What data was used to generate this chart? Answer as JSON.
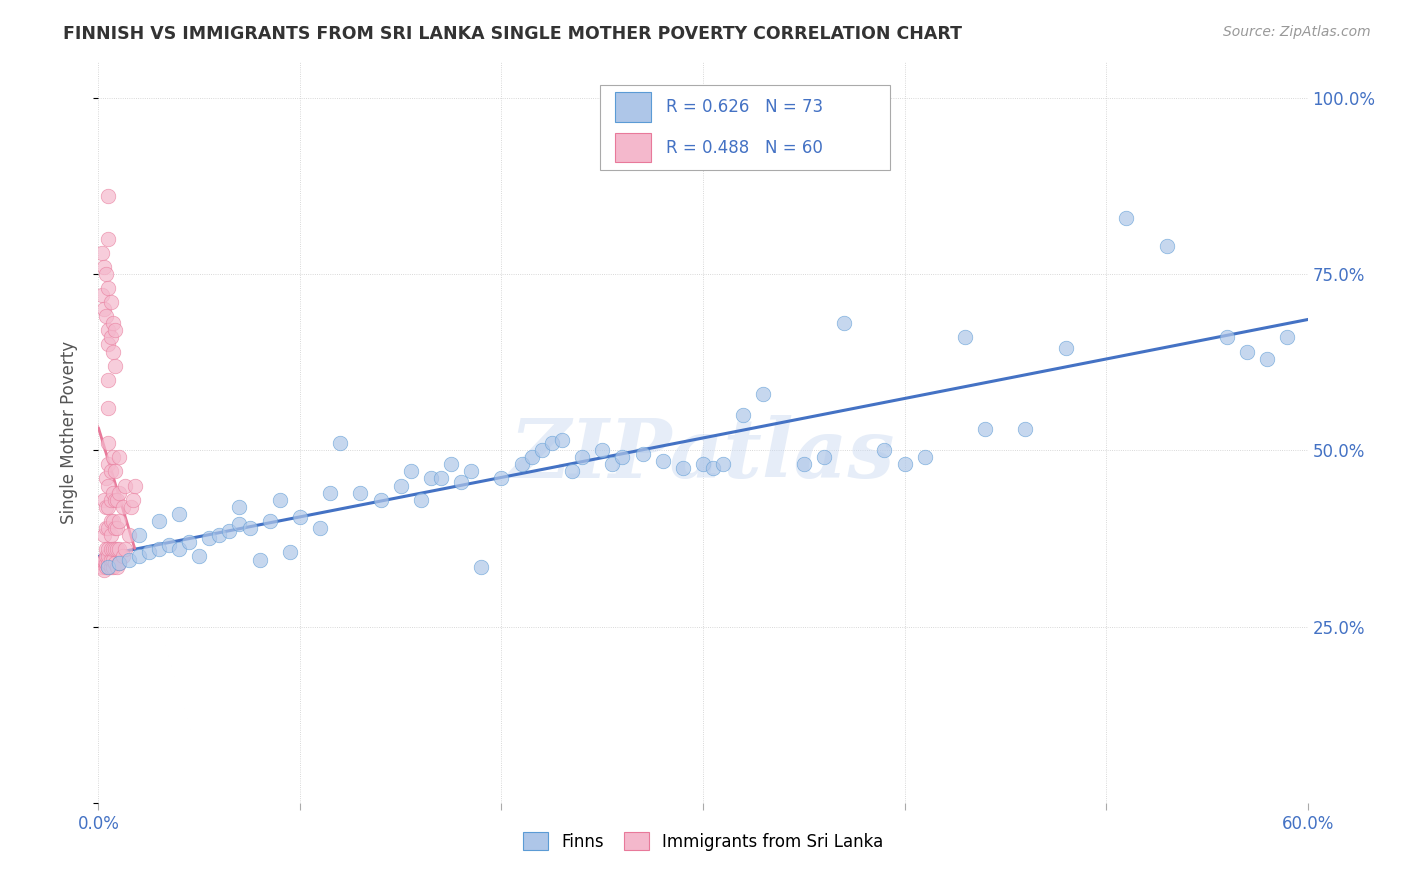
{
  "title": "FINNISH VS IMMIGRANTS FROM SRI LANKA SINGLE MOTHER POVERTY CORRELATION CHART",
  "source": "Source: ZipAtlas.com",
  "ylabel": "Single Mother Poverty",
  "watermark": "ZIPatlas",
  "legend_label_1": "Finns",
  "legend_label_2": "Immigrants from Sri Lanka",
  "R1": 0.626,
  "N1": 73,
  "R2": 0.488,
  "N2": 60,
  "xlim": [
    0.0,
    0.6
  ],
  "ylim": [
    0.0,
    1.05
  ],
  "blue_text": "#4472c4",
  "color_finns": "#aec6e8",
  "color_sri": "#f4b8cc",
  "color_edge_finns": "#5b9bd5",
  "color_edge_sri": "#e8799a",
  "color_line_finns": "#4472c4",
  "color_line_sri": "#e8799a",
  "finns_x": [
    0.005,
    0.01,
    0.015,
    0.02,
    0.02,
    0.025,
    0.03,
    0.03,
    0.035,
    0.04,
    0.04,
    0.045,
    0.05,
    0.055,
    0.06,
    0.065,
    0.07,
    0.07,
    0.075,
    0.08,
    0.085,
    0.09,
    0.095,
    0.1,
    0.11,
    0.115,
    0.12,
    0.13,
    0.14,
    0.15,
    0.155,
    0.16,
    0.165,
    0.17,
    0.175,
    0.18,
    0.185,
    0.19,
    0.2,
    0.21,
    0.215,
    0.22,
    0.225,
    0.23,
    0.235,
    0.24,
    0.25,
    0.255,
    0.26,
    0.27,
    0.28,
    0.29,
    0.3,
    0.305,
    0.31,
    0.32,
    0.33,
    0.35,
    0.36,
    0.37,
    0.39,
    0.4,
    0.41,
    0.43,
    0.44,
    0.46,
    0.48,
    0.51,
    0.53,
    0.56,
    0.57,
    0.58,
    0.59
  ],
  "finns_y": [
    0.335,
    0.34,
    0.345,
    0.35,
    0.38,
    0.355,
    0.36,
    0.4,
    0.365,
    0.36,
    0.41,
    0.37,
    0.35,
    0.375,
    0.38,
    0.385,
    0.395,
    0.42,
    0.39,
    0.345,
    0.4,
    0.43,
    0.355,
    0.405,
    0.39,
    0.44,
    0.51,
    0.44,
    0.43,
    0.45,
    0.47,
    0.43,
    0.46,
    0.46,
    0.48,
    0.455,
    0.47,
    0.335,
    0.46,
    0.48,
    0.49,
    0.5,
    0.51,
    0.515,
    0.47,
    0.49,
    0.5,
    0.48,
    0.49,
    0.495,
    0.485,
    0.475,
    0.48,
    0.475,
    0.48,
    0.55,
    0.58,
    0.48,
    0.49,
    0.68,
    0.5,
    0.48,
    0.49,
    0.66,
    0.53,
    0.53,
    0.645,
    0.83,
    0.79,
    0.66,
    0.64,
    0.63,
    0.66
  ],
  "sri_x": [
    0.002,
    0.002,
    0.003,
    0.003,
    0.003,
    0.003,
    0.004,
    0.004,
    0.004,
    0.004,
    0.004,
    0.004,
    0.004,
    0.005,
    0.005,
    0.005,
    0.005,
    0.005,
    0.005,
    0.005,
    0.005,
    0.005,
    0.005,
    0.005,
    0.005,
    0.006,
    0.006,
    0.006,
    0.006,
    0.006,
    0.006,
    0.006,
    0.007,
    0.007,
    0.007,
    0.007,
    0.007,
    0.007,
    0.008,
    0.008,
    0.008,
    0.008,
    0.008,
    0.009,
    0.009,
    0.009,
    0.009,
    0.01,
    0.01,
    0.01,
    0.01,
    0.01,
    0.012,
    0.012,
    0.013,
    0.013,
    0.015,
    0.016,
    0.017,
    0.018
  ],
  "sri_y": [
    0.335,
    0.34,
    0.33,
    0.345,
    0.38,
    0.43,
    0.335,
    0.34,
    0.35,
    0.36,
    0.39,
    0.42,
    0.46,
    0.335,
    0.34,
    0.35,
    0.36,
    0.39,
    0.42,
    0.45,
    0.48,
    0.51,
    0.56,
    0.6,
    0.65,
    0.335,
    0.345,
    0.36,
    0.38,
    0.4,
    0.43,
    0.47,
    0.335,
    0.345,
    0.36,
    0.4,
    0.44,
    0.49,
    0.34,
    0.36,
    0.39,
    0.43,
    0.47,
    0.335,
    0.36,
    0.39,
    0.43,
    0.34,
    0.36,
    0.4,
    0.44,
    0.49,
    0.35,
    0.42,
    0.36,
    0.45,
    0.38,
    0.42,
    0.43,
    0.45
  ],
  "sri_extra_x": [
    0.002,
    0.002,
    0.003,
    0.003,
    0.004,
    0.004,
    0.005,
    0.005,
    0.005,
    0.005,
    0.006,
    0.006,
    0.007,
    0.007,
    0.008,
    0.008
  ],
  "sri_extra_y": [
    0.72,
    0.78,
    0.7,
    0.76,
    0.69,
    0.75,
    0.67,
    0.73,
    0.8,
    0.86,
    0.66,
    0.71,
    0.64,
    0.68,
    0.62,
    0.67
  ]
}
